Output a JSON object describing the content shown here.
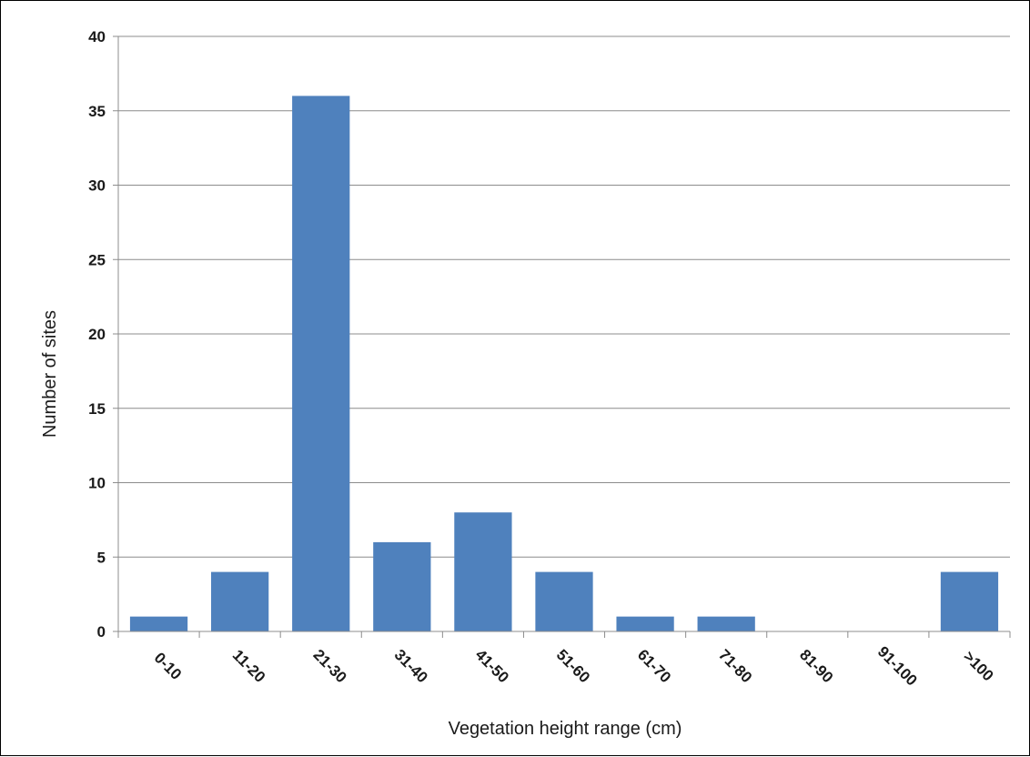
{
  "chart_data": {
    "type": "bar",
    "categories": [
      "0-10",
      "11-20",
      "21-30",
      "31-40",
      "41-50",
      "51-60",
      "61-70",
      "71-80",
      "81-90",
      "91-100",
      ">100"
    ],
    "values": [
      1,
      4,
      36,
      6,
      8,
      4,
      1,
      1,
      0,
      0,
      4
    ],
    "xlabel": "Vegetation height range (cm)",
    "ylabel": "Number of sites",
    "ylim": [
      0,
      40
    ],
    "yticks": [
      0,
      5,
      10,
      15,
      20,
      25,
      30,
      35,
      40
    ],
    "grid": true,
    "legend": "none",
    "colors": {
      "bar": "#4f81bd",
      "grid": "#8c8c8c",
      "axis": "#8c8c8c"
    }
  }
}
